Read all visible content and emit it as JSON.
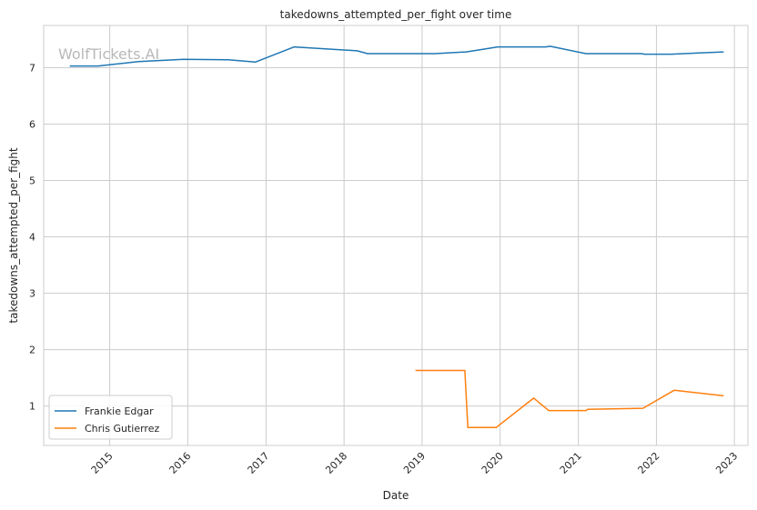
{
  "chart_data": {
    "type": "line",
    "title": "takedowns_attempted_per_fight over time",
    "xlabel": "Date",
    "ylabel": "takedowns_attempted_per_fight",
    "watermark": "WolfTickets.AI",
    "xlim": [
      "2014-02-26",
      "2023-03-05"
    ],
    "ylim": [
      0.3,
      7.75
    ],
    "x_ticks": [
      "2015",
      "2016",
      "2017",
      "2018",
      "2019",
      "2020",
      "2021",
      "2022",
      "2023"
    ],
    "y_ticks": [
      1,
      2,
      3,
      4,
      5,
      6,
      7
    ],
    "grid": true,
    "legend_position": "lower-left",
    "series": [
      {
        "name": "Frankie Edgar",
        "color": "#1f77b4",
        "points": [
          [
            "2014-06-28",
            7.03
          ],
          [
            "2014-11-08",
            7.03
          ],
          [
            "2015-05-16",
            7.11
          ],
          [
            "2015-12-12",
            7.15
          ],
          [
            "2016-07-09",
            7.14
          ],
          [
            "2016-11-12",
            7.1
          ],
          [
            "2017-05-13",
            7.37
          ],
          [
            "2018-03-03",
            7.3
          ],
          [
            "2018-04-21",
            7.25
          ],
          [
            "2019-03-02",
            7.25
          ],
          [
            "2019-07-27",
            7.28
          ],
          [
            "2019-12-21",
            7.37
          ],
          [
            "2020-08-01",
            7.37
          ],
          [
            "2020-08-22",
            7.38
          ],
          [
            "2021-02-06",
            7.25
          ],
          [
            "2021-10-23",
            7.25
          ],
          [
            "2021-11-06",
            7.24
          ],
          [
            "2022-03-12",
            7.24
          ],
          [
            "2022-11-12",
            7.28
          ]
        ]
      },
      {
        "name": "Chris Gutierrez",
        "color": "#ff7f0e",
        "points": [
          [
            "2018-12-01",
            1.63
          ],
          [
            "2019-07-20",
            1.63
          ],
          [
            "2019-08-03",
            0.62
          ],
          [
            "2019-12-14",
            0.62
          ],
          [
            "2020-06-06",
            1.14
          ],
          [
            "2020-08-15",
            0.92
          ],
          [
            "2021-02-06",
            0.92
          ],
          [
            "2021-02-13",
            0.94
          ],
          [
            "2021-10-30",
            0.96
          ],
          [
            "2022-03-26",
            1.28
          ],
          [
            "2022-11-12",
            1.18
          ]
        ]
      }
    ]
  }
}
